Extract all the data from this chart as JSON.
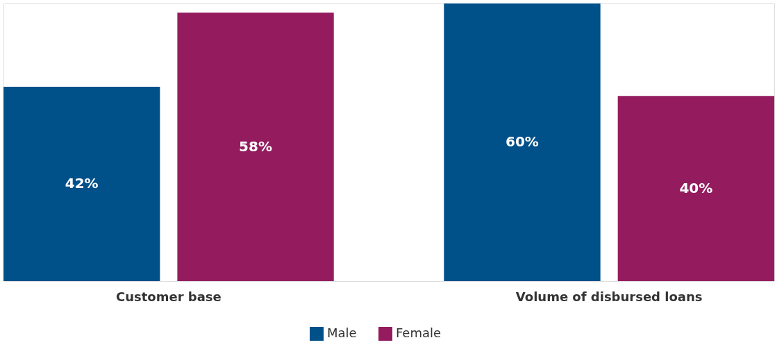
{
  "chart_data": {
    "type": "bar",
    "categories": [
      "Customer base",
      "Volume of disbursed loans"
    ],
    "series": [
      {
        "name": "Male",
        "color": "#00508a",
        "values": [
          42,
          60
        ],
        "value_labels": [
          "42%",
          "60%"
        ]
      },
      {
        "name": "Female",
        "color": "#941c5e",
        "values": [
          58,
          40
        ],
        "value_labels": [
          "58%",
          "40%"
        ]
      }
    ],
    "legend": "bottom",
    "tick_labels": "x"
  }
}
